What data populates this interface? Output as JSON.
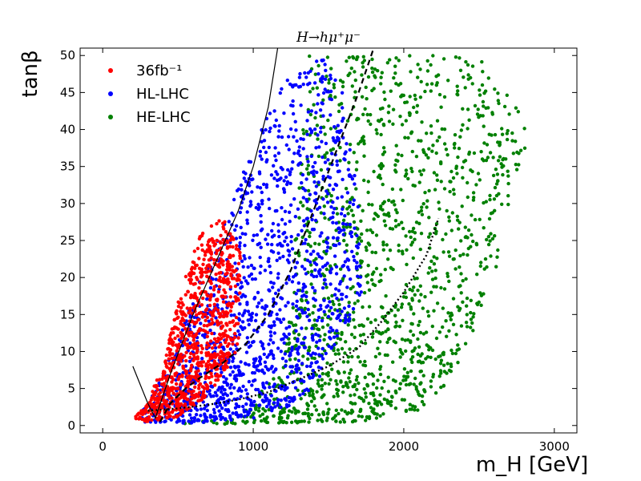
{
  "chart_data": {
    "type": "scatter",
    "title": "H→hμ⁺μ⁻",
    "xlabel": "m_H [GeV]",
    "ylabel": "tanβ",
    "xlim": [
      -150,
      3150
    ],
    "ylim": [
      -1,
      51
    ],
    "x_ticks": [
      "0",
      "1000",
      "2000",
      "3000"
    ],
    "y_ticks": [
      "0",
      "5",
      "10",
      "15",
      "20",
      "25",
      "30",
      "35",
      "40",
      "45",
      "50"
    ],
    "legend_position": "top-left",
    "grid": false,
    "series": [
      {
        "name": "36fb⁻¹",
        "color": "#ff0000",
        "region": [
          [
            210,
            1
          ],
          [
            300,
            3
          ],
          [
            350,
            6
          ],
          [
            400,
            8
          ],
          [
            480,
            15
          ],
          [
            560,
            21
          ],
          [
            640,
            26
          ],
          [
            800,
            28
          ],
          [
            920,
            24
          ],
          [
            900,
            10
          ],
          [
            700,
            4
          ],
          [
            500,
            1.2
          ],
          [
            300,
            0.5
          ],
          [
            210,
            1
          ]
        ]
      },
      {
        "name": "HL-LHC",
        "color": "#0000ff",
        "region": [
          [
            220,
            0.5
          ],
          [
            350,
            5
          ],
          [
            500,
            12
          ],
          [
            650,
            20
          ],
          [
            800,
            27
          ],
          [
            950,
            35
          ],
          [
            1100,
            42
          ],
          [
            1250,
            48
          ],
          [
            1450,
            50
          ],
          [
            1600,
            45
          ],
          [
            1700,
            30
          ],
          [
            1720,
            18
          ],
          [
            1500,
            8
          ],
          [
            1300,
            3
          ],
          [
            1000,
            1
          ],
          [
            600,
            0.3
          ],
          [
            220,
            0.5
          ]
        ]
      },
      {
        "name": "HE-LHC",
        "color": "#008000",
        "region": [
          [
            400,
            0.3
          ],
          [
            900,
            1
          ],
          [
            1200,
            8
          ],
          [
            1300,
            30
          ],
          [
            1350,
            50
          ],
          [
            2500,
            50
          ],
          [
            2850,
            40
          ],
          [
            2700,
            30
          ],
          [
            2600,
            20
          ],
          [
            2450,
            12
          ],
          [
            2300,
            6
          ],
          [
            2100,
            2
          ],
          [
            1700,
            0.5
          ],
          [
            800,
            0.2
          ],
          [
            400,
            0.3
          ]
        ]
      }
    ],
    "curves": [
      {
        "style": "solid",
        "points": [
          [
            200,
            8
          ],
          [
            260,
            5
          ],
          [
            300,
            3
          ],
          [
            350,
            1
          ],
          [
            450,
            7
          ],
          [
            600,
            15
          ],
          [
            750,
            22
          ],
          [
            900,
            29
          ],
          [
            1000,
            35
          ],
          [
            1100,
            43
          ],
          [
            1170,
            52
          ]
        ]
      },
      {
        "style": "dashed",
        "points": [
          [
            380,
            0.5
          ],
          [
            450,
            3
          ],
          [
            550,
            5
          ],
          [
            650,
            6.5
          ],
          [
            800,
            8.5
          ],
          [
            950,
            11
          ],
          [
            1100,
            15
          ],
          [
            1250,
            21
          ],
          [
            1400,
            29
          ],
          [
            1550,
            37
          ],
          [
            1700,
            45
          ],
          [
            1800,
            51
          ]
        ]
      },
      {
        "style": "dotted",
        "points": [
          [
            300,
            2
          ],
          [
            500,
            2.3
          ],
          [
            700,
            2.8
          ],
          [
            900,
            3.5
          ],
          [
            1100,
            4.5
          ],
          [
            1300,
            6.2
          ],
          [
            1500,
            8
          ],
          [
            1700,
            10.5
          ],
          [
            1850,
            14
          ],
          [
            2000,
            18
          ],
          [
            2150,
            23
          ],
          [
            2230,
            28
          ]
        ]
      }
    ]
  }
}
